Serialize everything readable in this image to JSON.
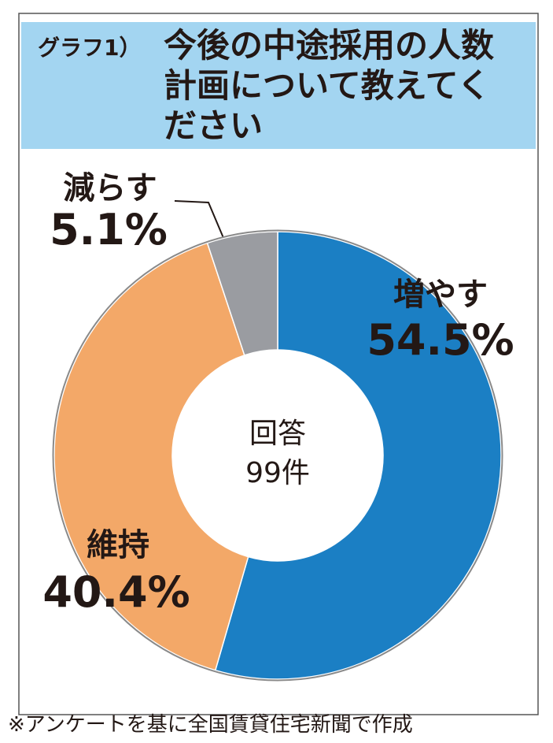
{
  "chart_data": {
    "type": "donut",
    "title_prefix": "グラフ1）",
    "title_lines": [
      "今後の中途採用の人数",
      "計画について教えてく",
      "ださい"
    ],
    "center_lines": [
      "回答",
      "99件"
    ],
    "categories": [
      "増やす",
      "維持",
      "減らす"
    ],
    "values": [
      54.5,
      40.4,
      5.1
    ],
    "value_labels": [
      "54.5%",
      "40.4%",
      "5.1%"
    ],
    "colors": [
      "#1b7fc4",
      "#f3a868",
      "#9a9ca1"
    ],
    "source": "※アンケートを基に全国賃貸住宅新聞で作成"
  }
}
